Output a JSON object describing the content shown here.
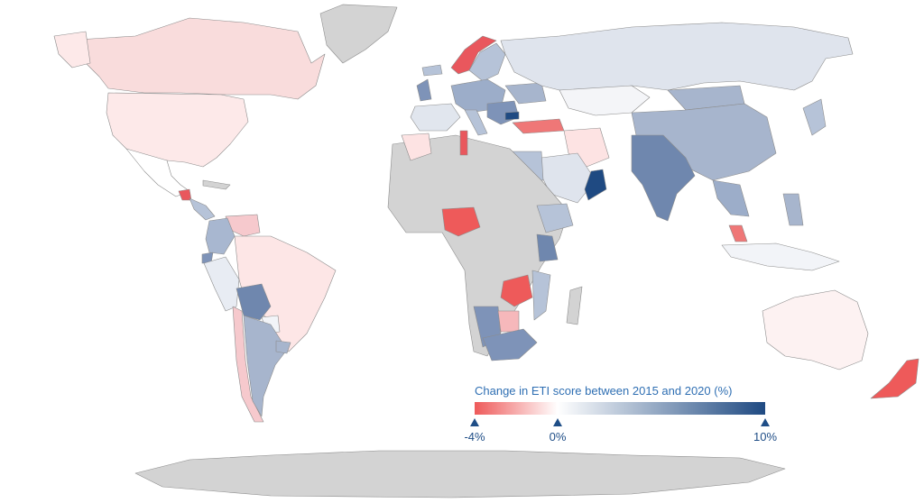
{
  "legend": {
    "title": "Change in ETI score between 2015 and 2020 (%)",
    "ticks": [
      {
        "label": "-4%",
        "value": -4
      },
      {
        "label": "0%",
        "value": 0
      },
      {
        "label": "10%",
        "value": 10
      }
    ],
    "min": -4,
    "max": 10,
    "colors": {
      "negative": "#ee5a5a",
      "zero": "#ffffff",
      "positive": "#1f4a82",
      "no_data": "#d3d3d3"
    }
  }
}
